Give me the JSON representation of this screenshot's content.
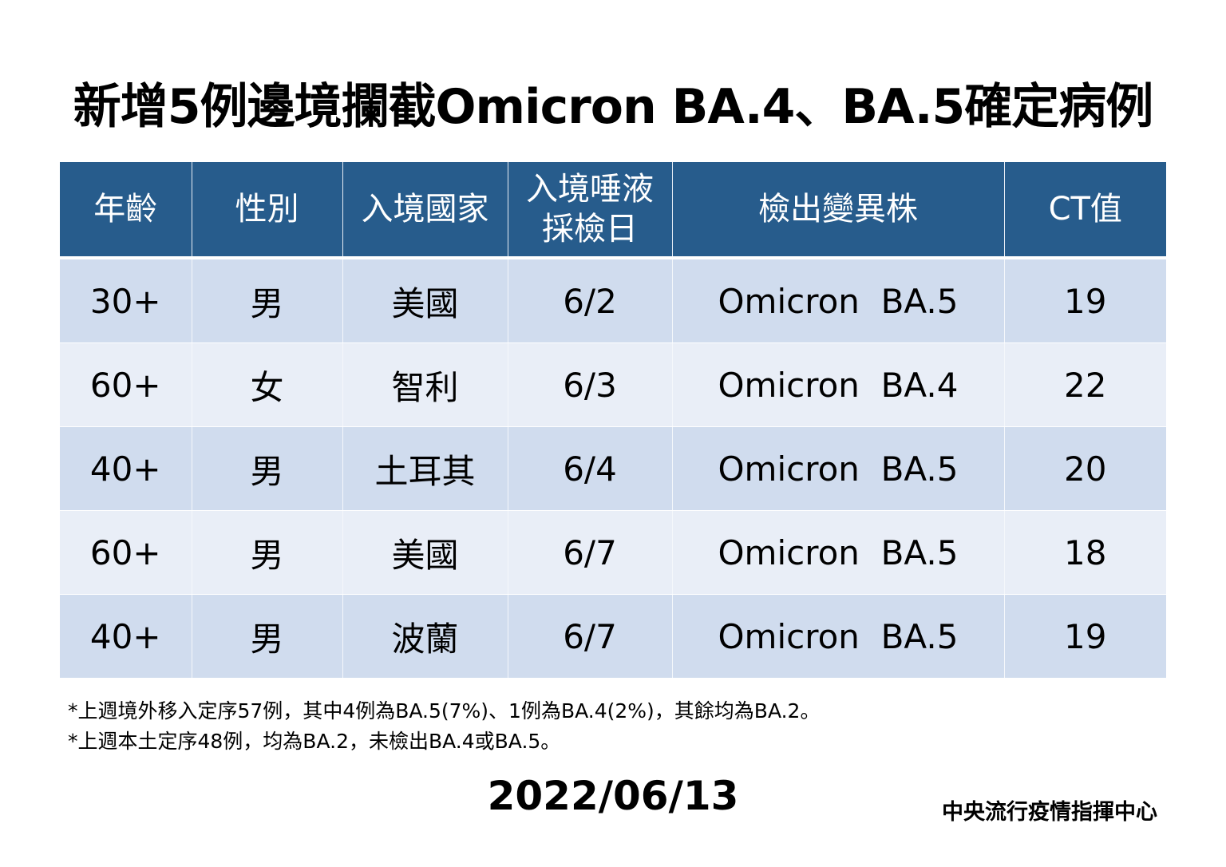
{
  "title": "新增5例邊境攔截Omicron BA.4、BA.5確定病例",
  "table": {
    "headers": [
      "年齡",
      "性別",
      "入境國家",
      "入境唾液\n採檢日",
      "檢出變異株",
      "CT值"
    ],
    "header_4_line1": "入境唾液",
    "header_4_line2": "採檢日",
    "rows": [
      [
        "30+",
        "男",
        "美國",
        "6/2",
        "Omicron  BA.5",
        "19"
      ],
      [
        "60+",
        "女",
        "智利",
        "6/3",
        "Omicron  BA.4",
        "22"
      ],
      [
        "40+",
        "男",
        "土耳其",
        "6/4",
        "Omicron  BA.5",
        "20"
      ],
      [
        "60+",
        "男",
        "美國",
        "6/7",
        "Omicron  BA.5",
        "18"
      ],
      [
        "40+",
        "男",
        "波蘭",
        "6/7",
        "Omicron  BA.5",
        "19"
      ]
    ]
  },
  "notes": [
    "*上週境外移入定序57例，其中4例為BA.5(7%)、1例為BA.4(2%)，其餘均為BA.2。",
    "*上週本土定序48例，均為BA.2，未檢出BA.4或BA.5。"
  ],
  "date": "2022/06/13",
  "organization": "中央流行疫情指揮中心",
  "colors": {
    "header_bg": "#275c8c",
    "row_odd": "#d0dcee",
    "row_even": "#e9eef7"
  }
}
